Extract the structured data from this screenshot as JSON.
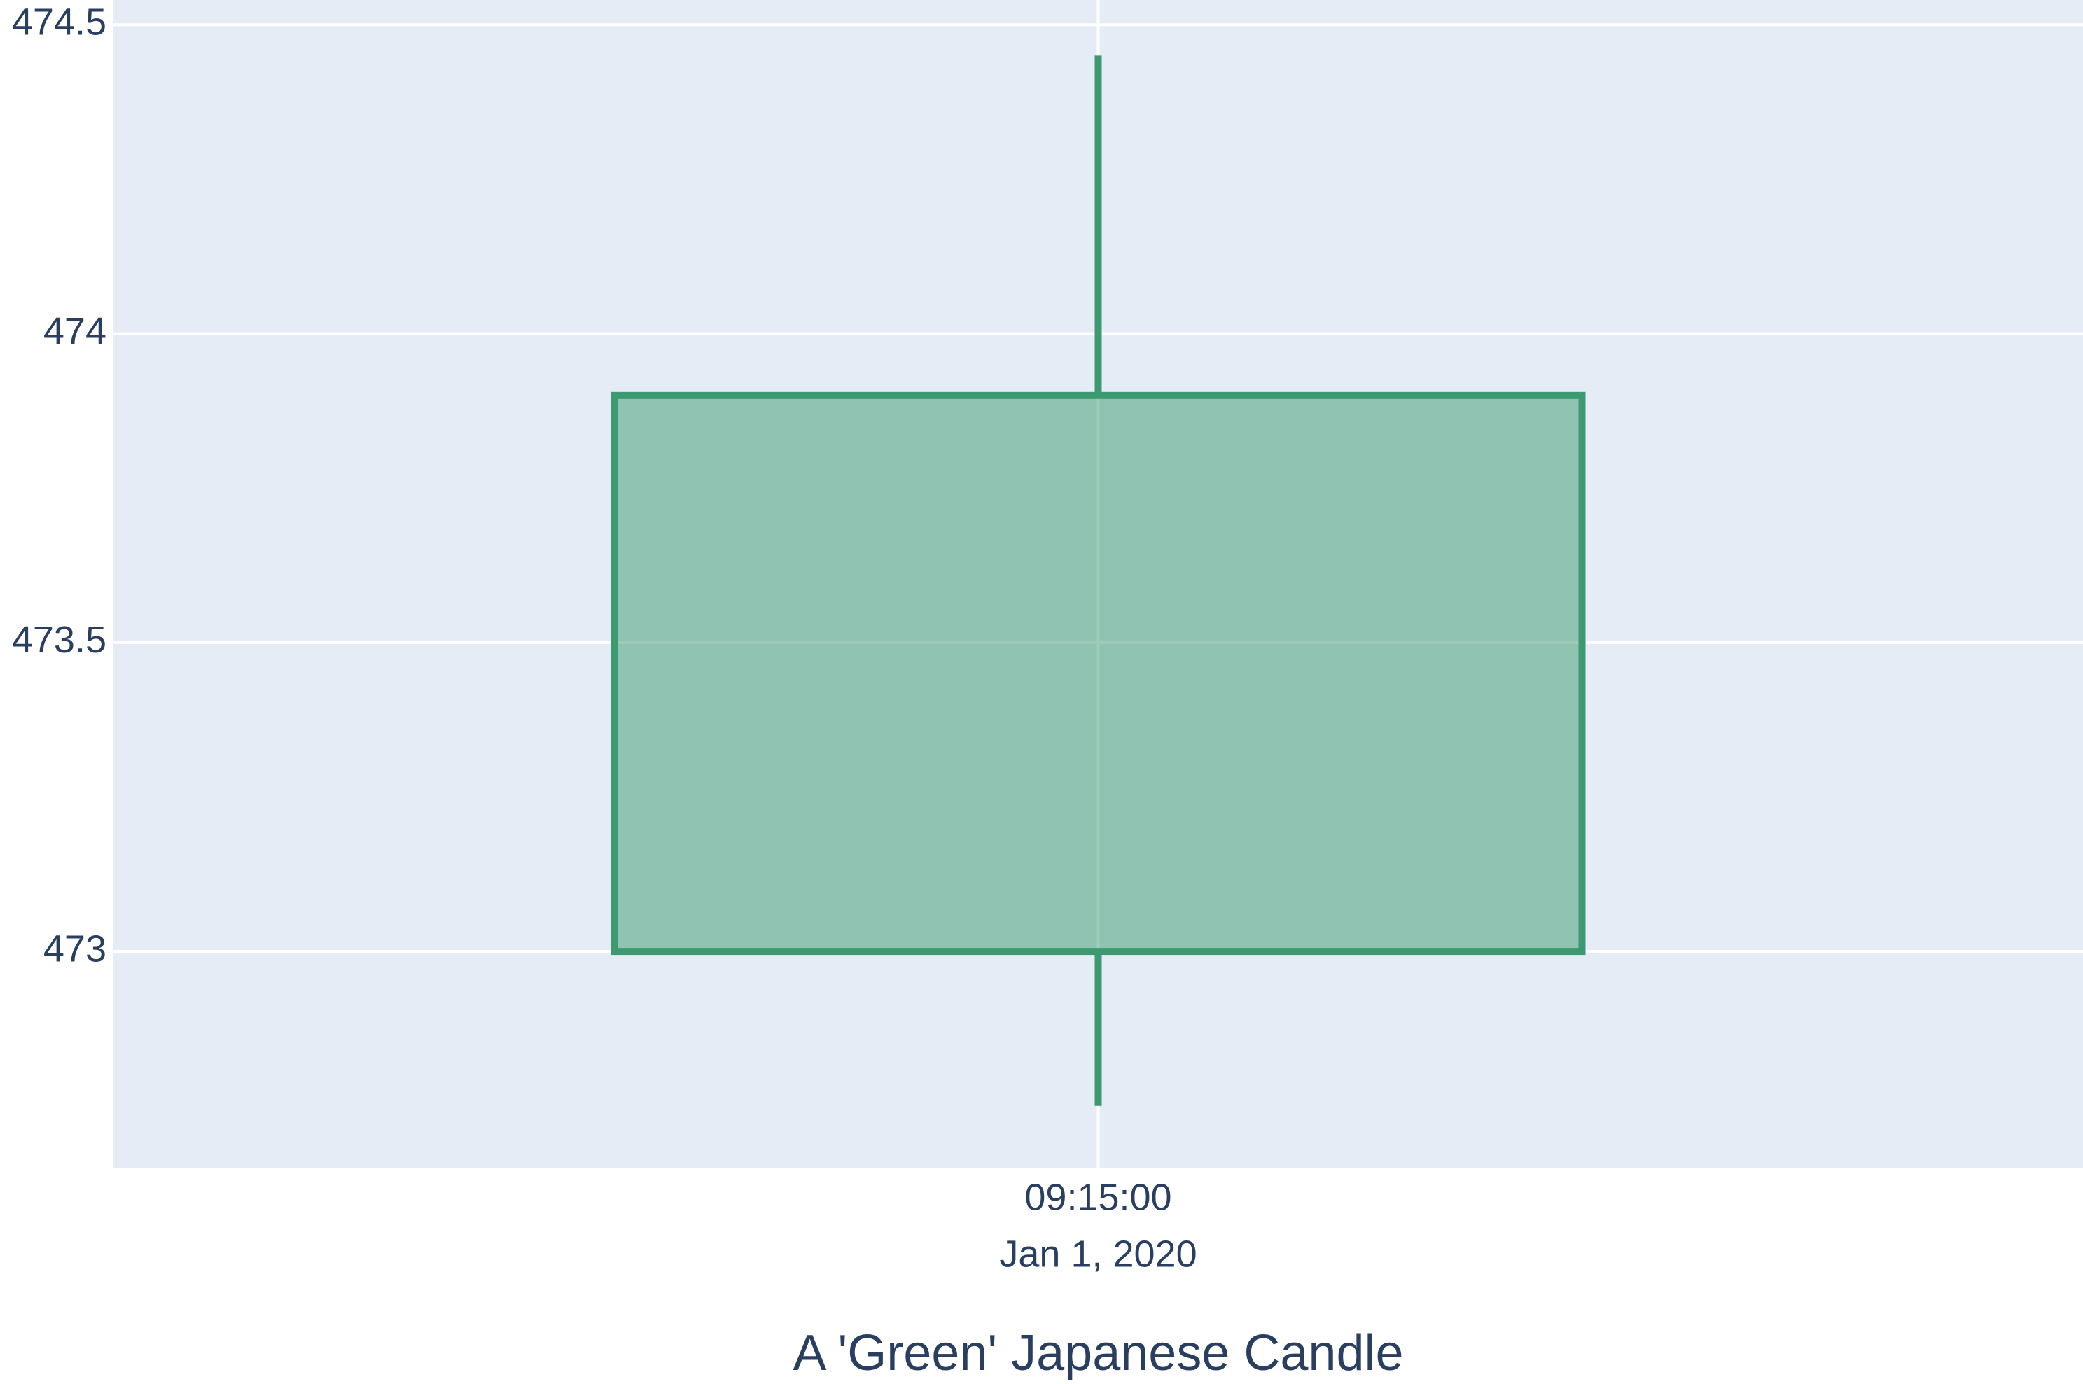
{
  "chart_data": {
    "type": "candlestick",
    "x": [
      "09:15:00",
      "Jan 1, 2020"
    ],
    "candles": [
      {
        "time": "09:15:00",
        "date": "Jan 1, 2020",
        "open": 473.0,
        "high": 474.45,
        "low": 472.75,
        "close": 473.9
      }
    ],
    "xlabel": "A 'Green' Japanese Candle",
    "ylabel": "",
    "ylim": [
      472.65,
      474.54
    ],
    "yticks": [
      473,
      473.5,
      474,
      474.5
    ],
    "ytick_labels": [
      "473",
      "473.5",
      "474",
      "474.5"
    ],
    "grid": true,
    "colors": {
      "plot_bg": "#e5ecf6",
      "grid": "#ffffff",
      "increasing": "#3d9970",
      "increasing_fill": "#95c2b3",
      "text": "#2a3f5f"
    }
  }
}
